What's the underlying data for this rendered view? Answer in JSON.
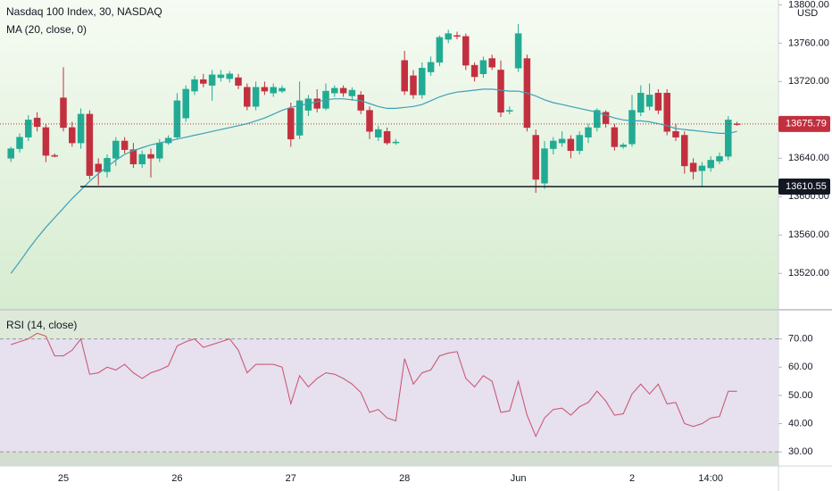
{
  "chart_data": [
    {
      "type": "candlestick",
      "title": "Nasdaq 100 Index, 30, NASDAQ",
      "currency": "USD",
      "categories": [
        null,
        null,
        null,
        null,
        null,
        null,
        "25",
        null,
        null,
        null,
        null,
        null,
        null,
        null,
        null,
        null,
        null,
        null,
        null,
        "26",
        null,
        null,
        null,
        null,
        null,
        null,
        null,
        null,
        null,
        null,
        null,
        null,
        "27",
        null,
        null,
        null,
        null,
        null,
        null,
        null,
        null,
        null,
        null,
        null,
        null,
        "28",
        null,
        null,
        null,
        null,
        null,
        null,
        null,
        null,
        null,
        null,
        null,
        null,
        "Jun",
        null,
        null,
        null,
        null,
        null,
        null,
        null,
        null,
        null,
        null,
        null,
        null,
        "2",
        null,
        null,
        null,
        null,
        null,
        null,
        null,
        null,
        "14:00",
        null,
        null,
        null
      ],
      "open": [
        13640,
        13650,
        13662,
        13682,
        13672,
        13643,
        13703,
        13672,
        13656,
        13686,
        13634,
        13626,
        13640,
        13658,
        13649,
        13634,
        13644,
        13640,
        13656,
        13662,
        13682,
        13710,
        13722,
        13716,
        13724,
        13723,
        13724,
        13714,
        13694,
        13714,
        13708,
        13710,
        13692,
        13664,
        13690,
        13702,
        13692,
        13708,
        13713,
        13705,
        13706,
        13690,
        13662,
        13668,
        13656,
        13742,
        13726,
        13706,
        13730,
        13740,
        13764,
        13768,
        13767,
        13737,
        13728,
        13744,
        13732,
        13689,
        13734,
        13744,
        13664,
        13614,
        13650,
        13656,
        13660,
        13648,
        13662,
        13672,
        13688,
        13672,
        13652,
        13655,
        13688,
        13694,
        13708,
        13708,
        13668,
        13664,
        13635,
        13627,
        13630,
        13637,
        13642,
        13676
      ],
      "high": [
        13652,
        13666,
        13685,
        13688,
        13676,
        13645,
        13735,
        13678,
        13692,
        13690,
        13640,
        13644,
        13662,
        13662,
        13656,
        13648,
        13650,
        13660,
        13664,
        13708,
        13716,
        13726,
        13728,
        13732,
        13732,
        13731,
        13728,
        13718,
        13720,
        13720,
        13718,
        13716,
        13698,
        13720,
        13706,
        13712,
        13718,
        13716,
        13716,
        13714,
        13710,
        13694,
        13674,
        13672,
        13660,
        13752,
        13732,
        13740,
        13746,
        13768,
        13774,
        13772,
        13770,
        13740,
        13746,
        13748,
        13742,
        13694,
        13780,
        13748,
        13670,
        13658,
        13662,
        13668,
        13664,
        13668,
        13676,
        13692,
        13690,
        13676,
        13656,
        13706,
        13716,
        13718,
        13712,
        13712,
        13676,
        13668,
        13640,
        13636,
        13642,
        13646,
        13684,
        13678
      ],
      "low": [
        13636,
        13646,
        13658,
        13668,
        13636,
        13641,
        13668,
        13652,
        13650,
        13618,
        13612,
        13620,
        13632,
        13645,
        13630,
        13630,
        13620,
        13636,
        13654,
        13660,
        13678,
        13706,
        13714,
        13700,
        13720,
        13719,
        13712,
        13690,
        13690,
        13706,
        13704,
        13708,
        13652,
        13660,
        13684,
        13688,
        13690,
        13704,
        13704,
        13700,
        13686,
        13660,
        13658,
        13654,
        13654,
        13706,
        13702,
        13702,
        13726,
        13736,
        13760,
        13764,
        13732,
        13720,
        13724,
        13732,
        13683,
        13686,
        13730,
        13668,
        13604,
        13608,
        13644,
        13652,
        13640,
        13644,
        13656,
        13668,
        13672,
        13648,
        13650,
        13652,
        13684,
        13690,
        13686,
        13664,
        13658,
        13624,
        13618,
        13610,
        13626,
        13634,
        13638,
        13674
      ],
      "close": [
        13650,
        13662,
        13680,
        13673,
        13643,
        13642,
        13672,
        13656,
        13686,
        13622,
        13626,
        13640,
        13658,
        13649,
        13634,
        13644,
        13640,
        13656,
        13661,
        13700,
        13712,
        13722,
        13718,
        13727,
        13727,
        13728,
        13716,
        13694,
        13714,
        13710,
        13714,
        13713,
        13660,
        13700,
        13702,
        13692,
        13710,
        13713,
        13708,
        13711,
        13690,
        13668,
        13670,
        13656,
        13657,
        13710,
        13706,
        13734,
        13740,
        13766,
        13770,
        13767,
        13737,
        13725,
        13742,
        13735,
        13688,
        13690,
        13770,
        13672,
        13618,
        13650,
        13658,
        13660,
        13648,
        13664,
        13672,
        13690,
        13676,
        13652,
        13654,
        13690,
        13708,
        13706,
        13690,
        13668,
        13662,
        13632,
        13626,
        13632,
        13638,
        13642,
        13680,
        13675.79
      ],
      "up_color": "#22ab94",
      "down_color": "#c2303f",
      "series": [
        {
          "name": "MA (20, close, 0)",
          "color": "#3e9fb7",
          "values": [
            13520,
            13532,
            13545,
            13557,
            13568,
            13578,
            13588,
            13598,
            13607,
            13616,
            13624,
            13631,
            13638,
            13644,
            13648,
            13651,
            13654,
            13656,
            13658,
            13660,
            13662,
            13664,
            13666,
            13668,
            13670,
            13672,
            13674,
            13676,
            13679,
            13682,
            13686,
            13690,
            13693,
            13695,
            13697,
            13699,
            13701,
            13702,
            13702,
            13701,
            13700,
            13697,
            13694,
            13692,
            13692,
            13693,
            13694,
            13696,
            13700,
            13704,
            13707,
            13709,
            13710,
            13711,
            13712,
            13712,
            13711,
            13710,
            13710,
            13708,
            13705,
            13701,
            13698,
            13696,
            13694,
            13692,
            13690,
            13688,
            13685,
            13682,
            13680,
            13679,
            13679,
            13678,
            13676,
            13674,
            13671,
            13670,
            13669,
            13668,
            13667,
            13666,
            13666,
            13668
          ]
        }
      ],
      "last_price": 13675.79,
      "horizontal_line": 13610.55,
      "ylim": [
        13483,
        13805
      ],
      "yticks": [
        {
          "value": 13520,
          "label": "13520.00"
        },
        {
          "value": 13560,
          "label": "13560.00"
        },
        {
          "value": 13600,
          "label": "13600.00"
        },
        {
          "value": 13640,
          "label": "13640.00"
        },
        {
          "value": 13720,
          "label": "13720.00"
        },
        {
          "value": 13760,
          "label": "13760.00"
        },
        {
          "value": 13800,
          "label": "13800.00"
        }
      ]
    },
    {
      "type": "line",
      "series": [
        {
          "name": "RSI (14, close)",
          "color": "#c8506a",
          "values": [
            68,
            69,
            70,
            72,
            71,
            64,
            64,
            66,
            70,
            57.5,
            58,
            60,
            59,
            61,
            58,
            56,
            58,
            59,
            60.5,
            67.5,
            69,
            70,
            67,
            68,
            69,
            70,
            66,
            58,
            61,
            61,
            61,
            60,
            47,
            57,
            53,
            56,
            58,
            57.5,
            56,
            54,
            51,
            44,
            45,
            42,
            41,
            63,
            54,
            58,
            59,
            64,
            65,
            65.5,
            56,
            53,
            57,
            55,
            44,
            44.5,
            55,
            43,
            35.5,
            42,
            45,
            45.5,
            43,
            46,
            47.5,
            51.5,
            48,
            43,
            43.5,
            50.5,
            54,
            50.5,
            54,
            47,
            47.5,
            40,
            39,
            40,
            42,
            42.5,
            51.5,
            51.5
          ]
        }
      ],
      "band": [
        30,
        70
      ],
      "ylim": [
        25,
        80
      ],
      "yticks": [
        {
          "value": 30,
          "label": "30.00"
        },
        {
          "value": 40,
          "label": "40.00"
        },
        {
          "value": 50,
          "label": "50.00"
        },
        {
          "value": 60,
          "label": "60.00"
        },
        {
          "value": 70,
          "label": "70.00"
        }
      ]
    }
  ]
}
